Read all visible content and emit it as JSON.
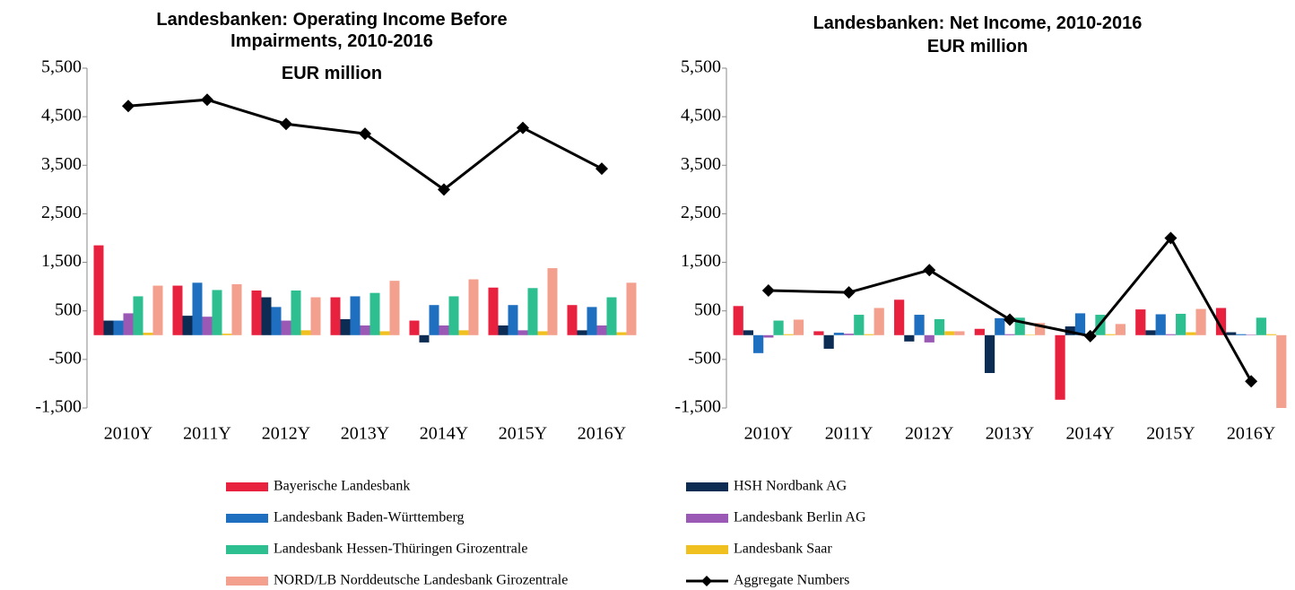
{
  "chart_data": [
    {
      "type": "bar",
      "title": "Landesbanken: Operating Income Before Impairments, 2010-2016",
      "subtitle": "EUR million",
      "categories": [
        "2010Y",
        "2011Y",
        "2012Y",
        "2013Y",
        "2014Y",
        "2015Y",
        "2016Y"
      ],
      "ylim": [
        -1500,
        5500
      ],
      "yticks": [
        {
          "value": 5500,
          "label": "5,500"
        },
        {
          "value": 4500,
          "label": "4,500"
        },
        {
          "value": 3500,
          "label": "3,500"
        },
        {
          "value": 2500,
          "label": "2,500"
        },
        {
          "value": 1500,
          "label": "1,500"
        },
        500,
        -500,
        {
          "value": -1500,
          "label": "-1,500"
        }
      ],
      "series": [
        {
          "name": "Bayerische Landesbank",
          "color": "#e8213f",
          "values": [
            1850,
            1020,
            920,
            780,
            300,
            980,
            620
          ]
        },
        {
          "name": "HSH Nordbank AG",
          "color": "#0d2c54",
          "values": [
            300,
            400,
            780,
            330,
            -150,
            200,
            100
          ]
        },
        {
          "name": "Landesbank Baden-Württemberg",
          "color": "#1f6fc0",
          "values": [
            300,
            1080,
            580,
            800,
            620,
            620,
            580
          ]
        },
        {
          "name": "Landesbank Berlin AG",
          "color": "#9b59b6",
          "values": [
            450,
            380,
            300,
            200,
            200,
            100,
            200
          ]
        },
        {
          "name": "Landesbank Hessen-Thüringen Girozentrale",
          "color": "#2ebf91",
          "values": [
            800,
            930,
            920,
            870,
            800,
            970,
            780
          ]
        },
        {
          "name": "Landesbank Saar",
          "color": "#f0c020",
          "values": [
            50,
            30,
            100,
            80,
            100,
            80,
            60
          ]
        },
        {
          "name": "NORD/LB Norddeutsche Landesbank Girozentrale",
          "color": "#f4a08e",
          "values": [
            1020,
            1050,
            780,
            1120,
            1150,
            1380,
            1080
          ]
        },
        {
          "name": "Aggregate Numbers",
          "color": "#000000",
          "type": "line",
          "values": [
            4720,
            4850,
            4350,
            4150,
            3000,
            4270,
            3430
          ]
        }
      ]
    },
    {
      "type": "bar",
      "title": "Landesbanken: Net Income, 2010-2016",
      "subtitle": "EUR million",
      "categories": [
        "2010Y",
        "2011Y",
        "2012Y",
        "2013Y",
        "2014Y",
        "2015Y",
        "2016Y"
      ],
      "ylim": [
        -1500,
        5500
      ],
      "yticks": [
        {
          "value": 5500,
          "label": "5,500"
        },
        {
          "value": 4500,
          "label": "4,500"
        },
        {
          "value": 3500,
          "label": "3,500"
        },
        {
          "value": 2500,
          "label": "2,500"
        },
        {
          "value": 1500,
          "label": "1,500"
        },
        500,
        -500,
        {
          "value": -1500,
          "label": "-1,500"
        }
      ],
      "series": [
        {
          "name": "Bayerische Landesbank",
          "color": "#e8213f",
          "values": [
            600,
            80,
            730,
            130,
            -1330,
            530,
            560
          ]
        },
        {
          "name": "HSH Nordbank AG",
          "color": "#0d2c54",
          "values": [
            100,
            -280,
            -130,
            -780,
            180,
            100,
            60
          ]
        },
        {
          "name": "Landesbank Baden-Württemberg",
          "color": "#1f6fc0",
          "values": [
            -370,
            50,
            420,
            350,
            450,
            430,
            20
          ]
        },
        {
          "name": "Landesbank Berlin AG",
          "color": "#9b59b6",
          "values": [
            -50,
            30,
            -150,
            20,
            20,
            20,
            10
          ]
        },
        {
          "name": "Landesbank Hessen-Thüringen Girozentrale",
          "color": "#2ebf91",
          "values": [
            300,
            420,
            330,
            360,
            420,
            440,
            360
          ]
        },
        {
          "name": "Landesbank Saar",
          "color": "#f0c020",
          "values": [
            20,
            20,
            80,
            10,
            20,
            60,
            20
          ]
        },
        {
          "name": "NORD/LB Norddeutsche Landesbank Girozentrale",
          "color": "#f4a08e",
          "values": [
            320,
            560,
            80,
            250,
            230,
            540,
            -1500
          ]
        },
        {
          "name": "Aggregate Numbers",
          "color": "#000000",
          "type": "line",
          "values": [
            920,
            880,
            1340,
            320,
            -20,
            2000,
            -950
          ]
        }
      ]
    }
  ]
}
